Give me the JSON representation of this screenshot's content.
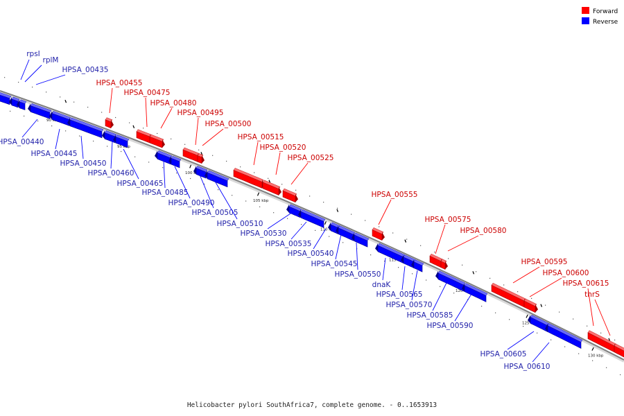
{
  "caption": "Helicobacter pylori SouthAfrica7, complete genome. - 0..1653913",
  "legend": [
    {
      "label": "Forward",
      "color": "#ff0000"
    },
    {
      "label": "Reverse",
      "color": "#0000ff"
    }
  ],
  "colors": {
    "forward": "#ff0000",
    "reverse": "#0000ff",
    "forward_text": "#cc0000",
    "reverse_text": "#2222aa",
    "backbone": "#7f7f7f"
  },
  "ticks": [
    {
      "label": "90 kbp"
    },
    {
      "label": "95 kbp"
    },
    {
      "label": "100 kbp"
    },
    {
      "label": "105 kbp"
    },
    {
      "label": "110 kbp"
    },
    {
      "label": "115 kbp"
    },
    {
      "label": "120 kbp"
    },
    {
      "label": "125 kbp"
    },
    {
      "label": "130 kbp"
    }
  ],
  "genes": [
    {
      "name": "rpsI",
      "strand": "reverse"
    },
    {
      "name": "rplM",
      "strand": "reverse"
    },
    {
      "name": "HPSA_00435",
      "strand": "reverse"
    },
    {
      "name": "HPSA_00440",
      "strand": "reverse"
    },
    {
      "name": "HPSA_00445",
      "strand": "reverse"
    },
    {
      "name": "HPSA_00450",
      "strand": "reverse"
    },
    {
      "name": "HPSA_00455",
      "strand": "forward"
    },
    {
      "name": "HPSA_00460",
      "strand": "reverse"
    },
    {
      "name": "HPSA_00465",
      "strand": "reverse"
    },
    {
      "name": "HPSA_00475",
      "strand": "forward"
    },
    {
      "name": "HPSA_00480",
      "strand": "forward"
    },
    {
      "name": "HPSA_00485",
      "strand": "reverse"
    },
    {
      "name": "HPSA_00490",
      "strand": "reverse"
    },
    {
      "name": "HPSA_00495",
      "strand": "forward"
    },
    {
      "name": "HPSA_00500",
      "strand": "forward"
    },
    {
      "name": "HPSA_00505",
      "strand": "reverse"
    },
    {
      "name": "HPSA_00510",
      "strand": "reverse"
    },
    {
      "name": "HPSA_00515",
      "strand": "forward"
    },
    {
      "name": "HPSA_00520",
      "strand": "forward"
    },
    {
      "name": "HPSA_00525",
      "strand": "forward"
    },
    {
      "name": "HPSA_00530",
      "strand": "reverse"
    },
    {
      "name": "HPSA_00535",
      "strand": "reverse"
    },
    {
      "name": "HPSA_00540",
      "strand": "reverse"
    },
    {
      "name": "HPSA_00545",
      "strand": "reverse"
    },
    {
      "name": "HPSA_00550",
      "strand": "reverse"
    },
    {
      "name": "HPSA_00555",
      "strand": "forward"
    },
    {
      "name": "dnaK",
      "strand": "reverse"
    },
    {
      "name": "HPSA_00565",
      "strand": "reverse"
    },
    {
      "name": "HPSA_00570",
      "strand": "reverse"
    },
    {
      "name": "HPSA_00575",
      "strand": "forward"
    },
    {
      "name": "HPSA_00580",
      "strand": "forward"
    },
    {
      "name": "HPSA_00585",
      "strand": "reverse"
    },
    {
      "name": "HPSA_00590",
      "strand": "reverse"
    },
    {
      "name": "HPSA_00595",
      "strand": "forward"
    },
    {
      "name": "HPSA_00600",
      "strand": "forward"
    },
    {
      "name": "HPSA_00605",
      "strand": "reverse"
    },
    {
      "name": "HPSA_00610",
      "strand": "reverse"
    },
    {
      "name": "HPSA_00615",
      "strand": "forward"
    },
    {
      "name": "thrS",
      "strand": "forward"
    }
  ]
}
